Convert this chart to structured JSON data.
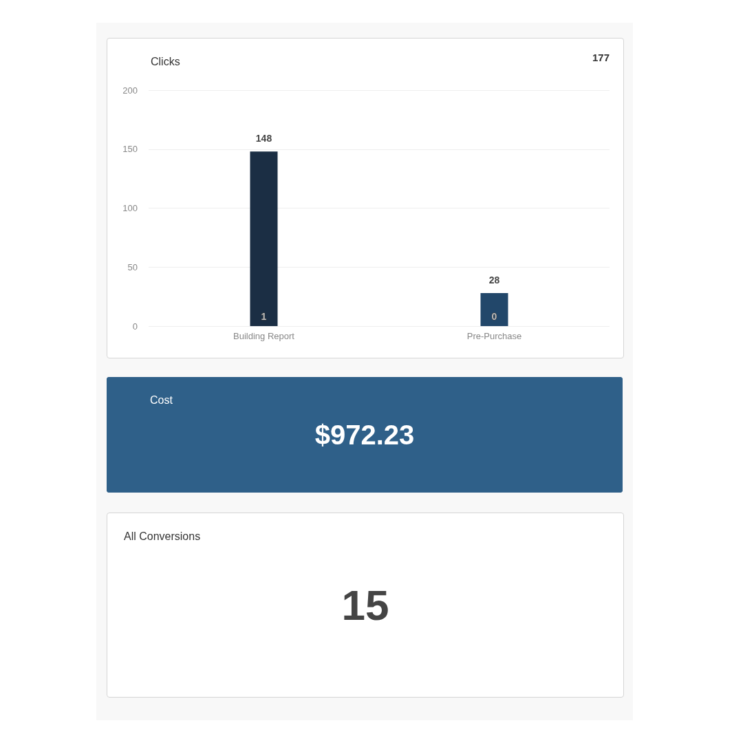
{
  "chart_data": [
    {
      "type": "bar",
      "title": "Clicks",
      "categories": [
        "Building Report",
        "Pre-Purchase"
      ],
      "colors": [
        "#1b2e44",
        "#22476a"
      ],
      "values": [
        148,
        28
      ],
      "data_labels": true,
      "ylim": [
        0,
        200
      ],
      "yticks": [
        0,
        50,
        100,
        150,
        200
      ],
      "grid": "y",
      "annotations": [
        "177",
        "1",
        "0"
      ]
    },
    {
      "type": "other",
      "title": "Cost",
      "color": "#2f6089",
      "annotations": [
        "$972.23"
      ]
    },
    {
      "type": "other",
      "title": "All Conversions",
      "annotations": [
        "15"
      ]
    }
  ]
}
